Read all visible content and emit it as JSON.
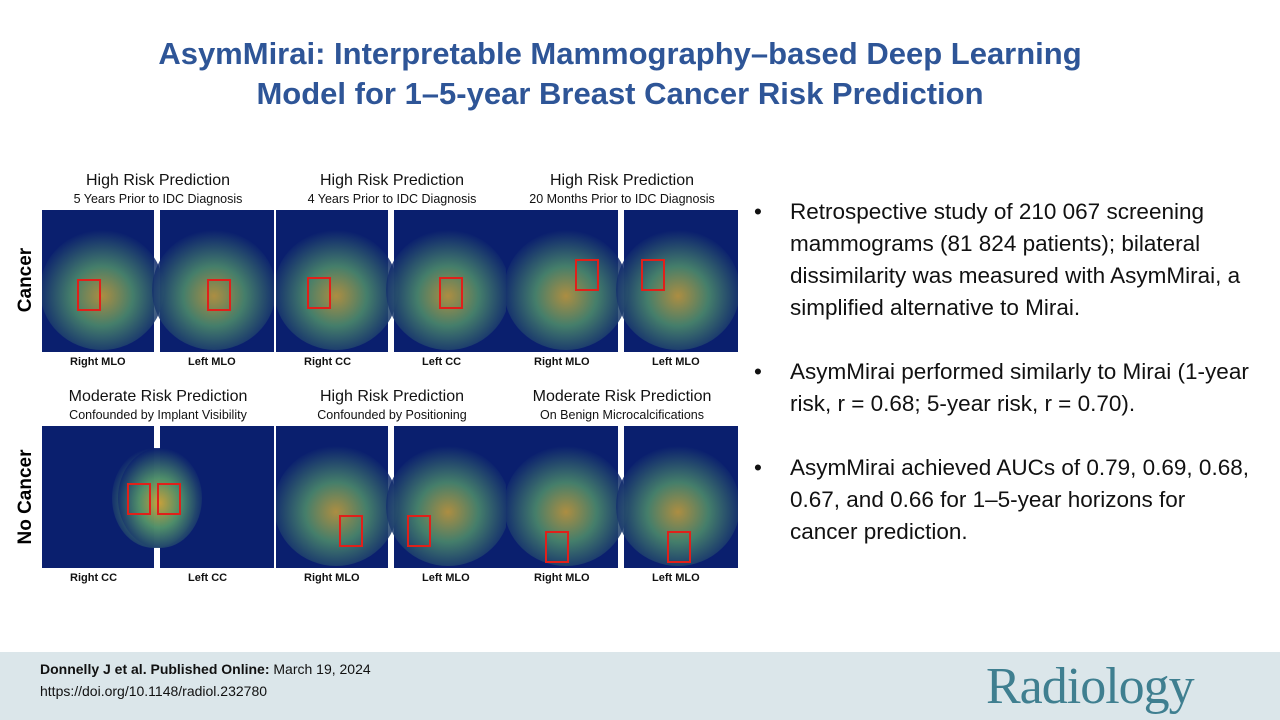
{
  "title": {
    "line1": "AsymMirai: Interpretable Mammography–based Deep Learning",
    "line2": "Model for 1–5-year Breast Cancer Risk Prediction"
  },
  "figure": {
    "row_labels": [
      "Cancer",
      "No Cancer"
    ],
    "panels": [
      {
        "title": "High Risk Prediction",
        "subtitle": "5 Years Prior to IDC Diagnosis",
        "left_view": "Right MLO",
        "right_view": "Left MLO"
      },
      {
        "title": "High Risk Prediction",
        "subtitle": "4 Years Prior to IDC Diagnosis",
        "left_view": "Right CC",
        "right_view": "Left CC"
      },
      {
        "title": "High Risk Prediction",
        "subtitle": "20 Months Prior to IDC Diagnosis",
        "left_view": "Right MLO",
        "right_view": "Left MLO"
      },
      {
        "title": "Moderate Risk Prediction",
        "subtitle": "Confounded by Implant Visibility",
        "left_view": "Right CC",
        "right_view": "Left CC"
      },
      {
        "title": "High Risk Prediction",
        "subtitle": "Confounded by Positioning",
        "left_view": "Right MLO",
        "right_view": "Left MLO"
      },
      {
        "title": "Moderate Risk Prediction",
        "subtitle": "On Benign Microcalcifications",
        "left_view": "Right MLO",
        "right_view": "Left MLO"
      }
    ]
  },
  "bullets": [
    "Retrospective study of 210 067 screening mammograms (81 824 patients); bilateral dissimilarity was measured with AsymMirai, a simplified alternative to Mirai.",
    "AsymMirai performed similarly to Mirai (1-year risk, r = 0.68; 5-year risk, r = 0.70).",
    "AsymMirai achieved AUCs of 0.79, 0.69, 0.68, 0.67, and 0.66 for 1–5-year horizons for cancer prediction."
  ],
  "bullet_symbol": "•",
  "footer": {
    "citation_bold": "Donnelly J et al. Published Online:",
    "citation_date": " March 19, 2024",
    "doi": "https://doi.org/10.1148/radiol.232780",
    "logo": "Radiology"
  },
  "colors": {
    "title": "#2e5597",
    "footer_bg": "#dbe6ea",
    "logo": "#3f7f90",
    "heatmap_bg": "#0a1f6e",
    "highlight_box": "#e0201a"
  }
}
